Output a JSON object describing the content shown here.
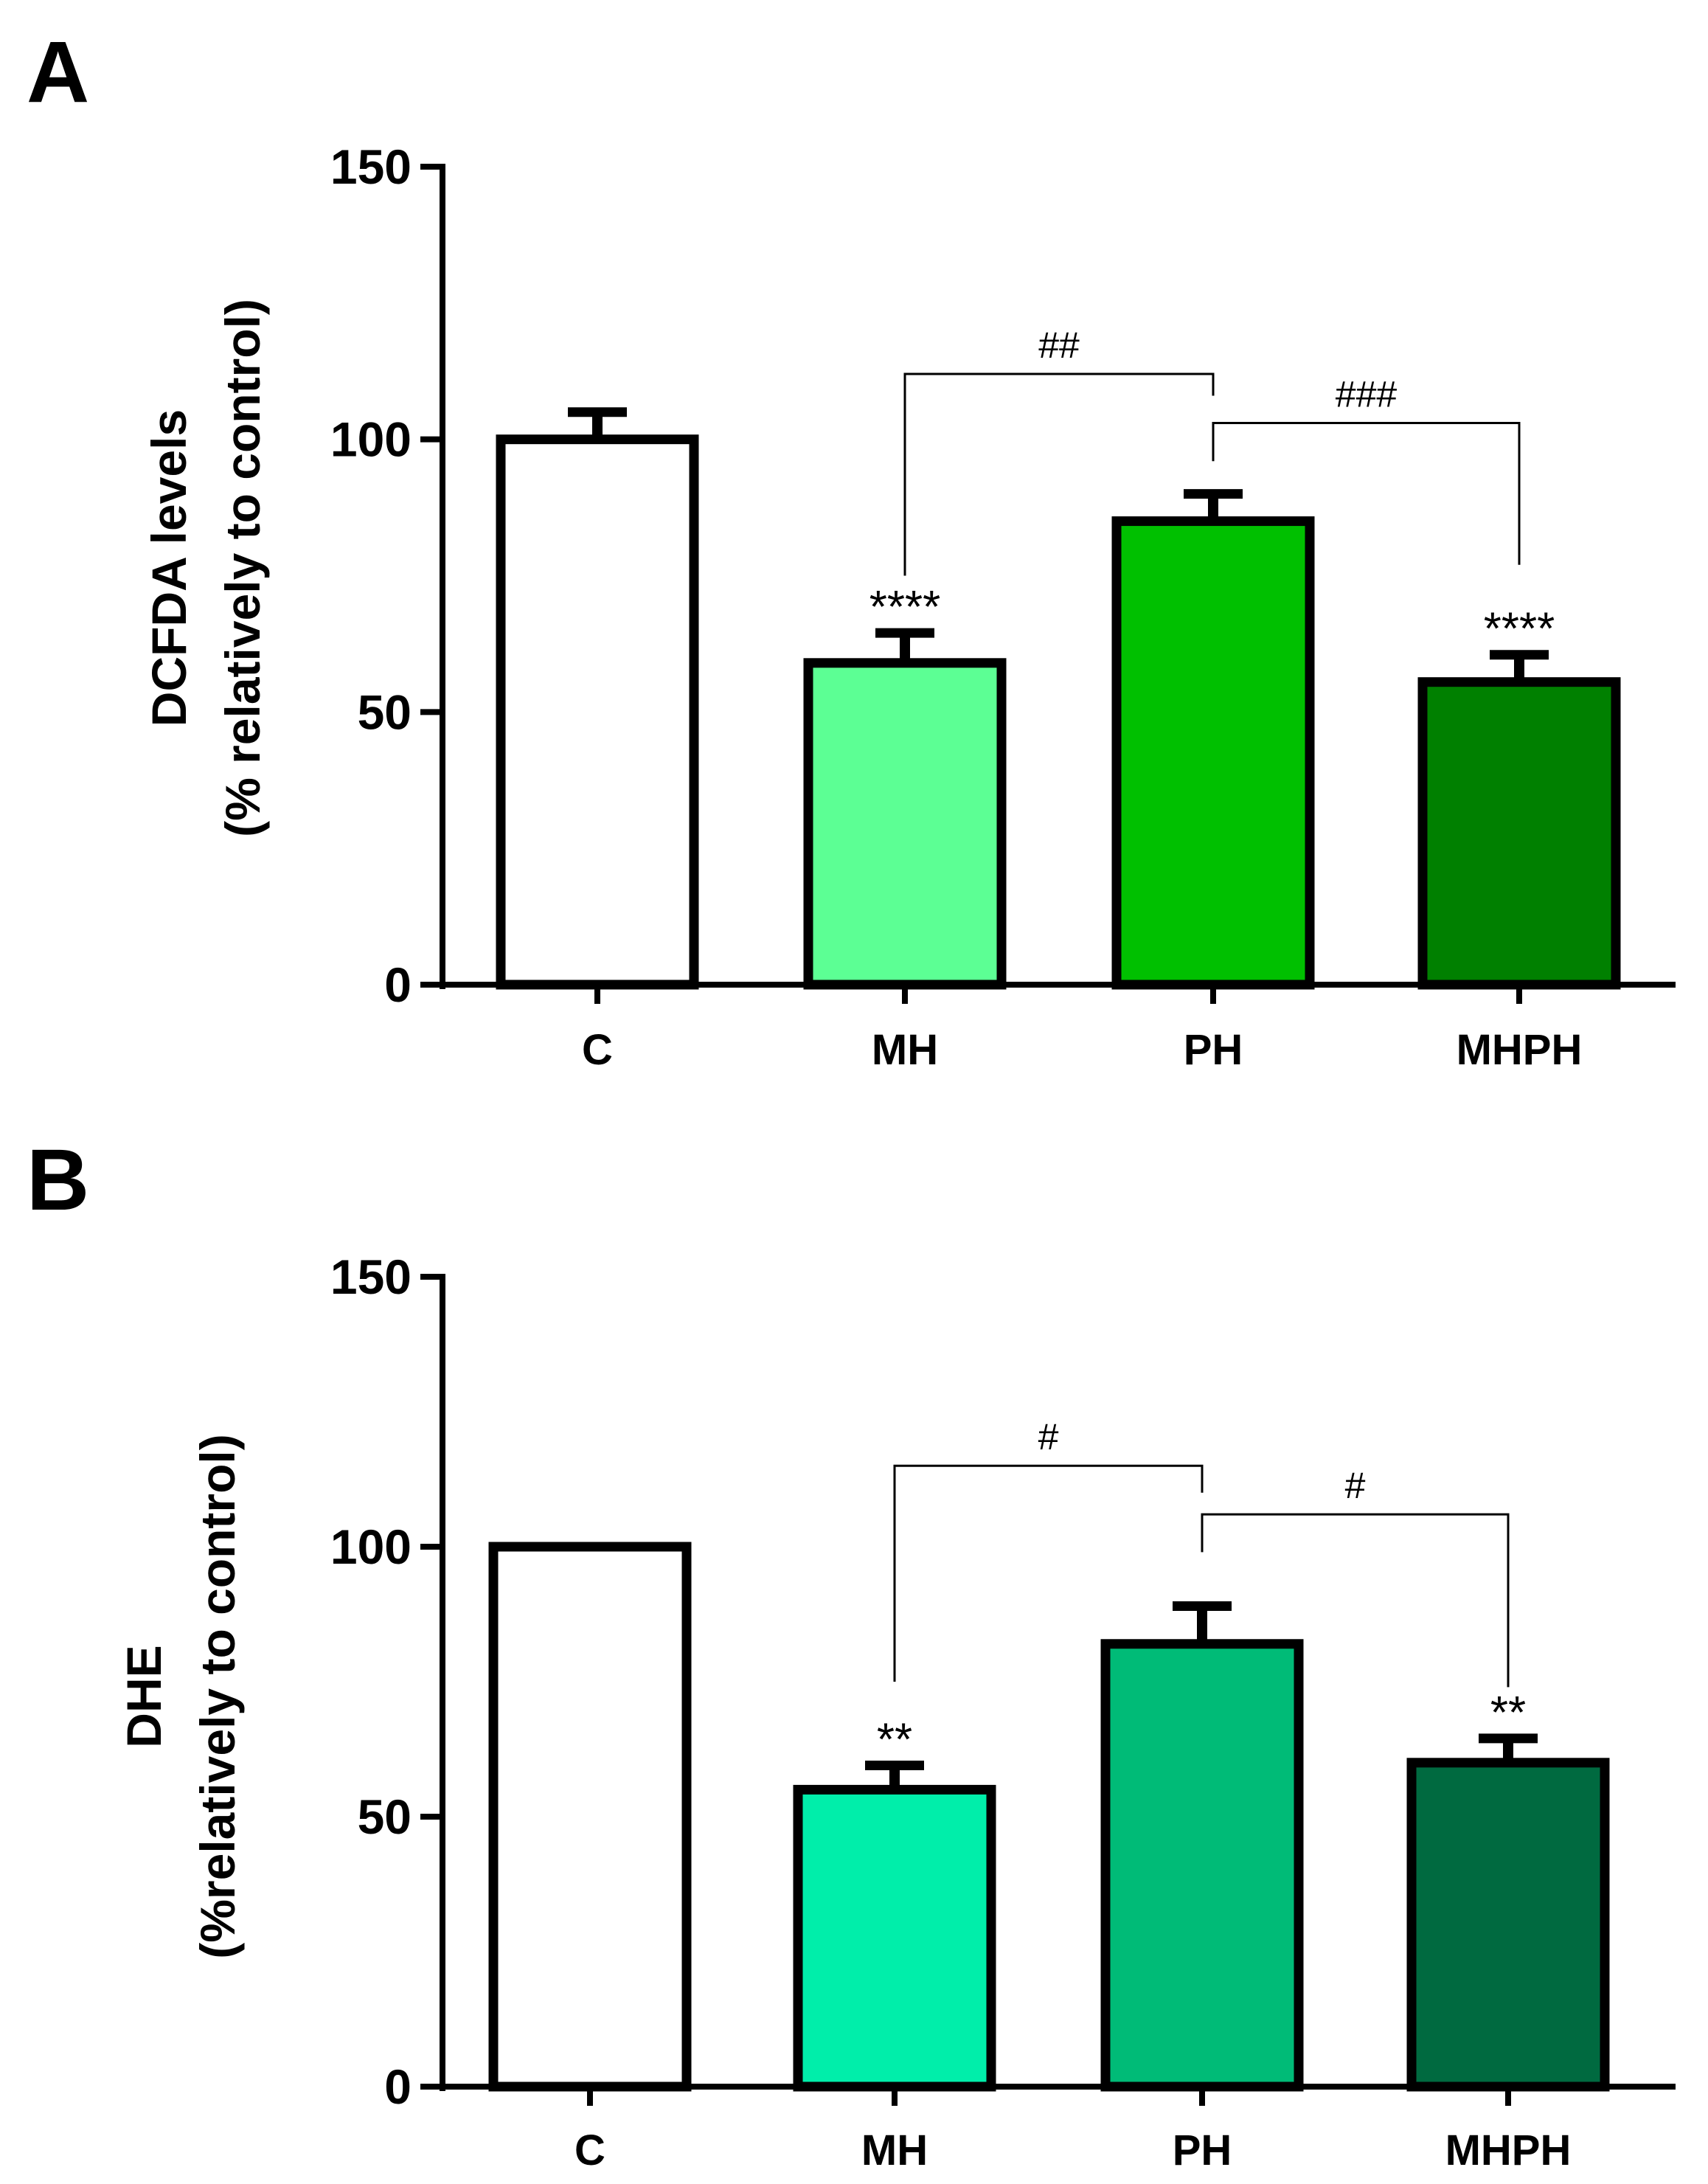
{
  "chart_data": [
    {
      "panel": "A",
      "type": "bar",
      "categories": [
        "C",
        "MH",
        "PH",
        "MHPH"
      ],
      "values": [
        100,
        59,
        85,
        55.5
      ],
      "errors": [
        5,
        5.5,
        5,
        5
      ],
      "colors": [
        "#ffffff",
        "#5cff94",
        "#00c000",
        "#008000"
      ],
      "ylabel_line1": "DCFDA levels",
      "ylabel_line2": "(% relatively to control)",
      "ylim": [
        0,
        150
      ],
      "yticks": [
        0,
        50,
        100,
        150
      ],
      "annotations": [
        {
          "category": "MH",
          "text": "****"
        },
        {
          "category": "MHPH",
          "text": "****"
        }
      ],
      "brackets": [
        {
          "from": "MH",
          "to": "PH",
          "text": "##",
          "level": 112,
          "from_drop": 75,
          "to_drop": 108
        },
        {
          "from": "PH",
          "to": "MHPH",
          "text": "###",
          "level": 103,
          "from_drop": 96,
          "to_drop": 77
        }
      ]
    },
    {
      "panel": "B",
      "type": "bar",
      "categories": [
        "C",
        "MH",
        "PH",
        "MHPH"
      ],
      "values": [
        100,
        55,
        82,
        60
      ],
      "errors": [
        0,
        4.5,
        7,
        4.5
      ],
      "colors": [
        "#ffffff",
        "#00eeaa",
        "#00bb77",
        "#006a40"
      ],
      "ylabel_line1": "DHE",
      "ylabel_line2": "(%relatively to control)",
      "ylim": [
        0,
        150
      ],
      "yticks": [
        0,
        50,
        100,
        150
      ],
      "annotations": [
        {
          "category": "MH",
          "text": "**"
        },
        {
          "category": "MHPH",
          "text": "**"
        }
      ],
      "brackets": [
        {
          "from": "MH",
          "to": "PH",
          "text": "#",
          "level": 115,
          "from_drop": 75,
          "to_drop": 110
        },
        {
          "from": "PH",
          "to": "MHPH",
          "text": "#",
          "level": 106,
          "from_drop": 99,
          "to_drop": 74
        }
      ]
    }
  ]
}
